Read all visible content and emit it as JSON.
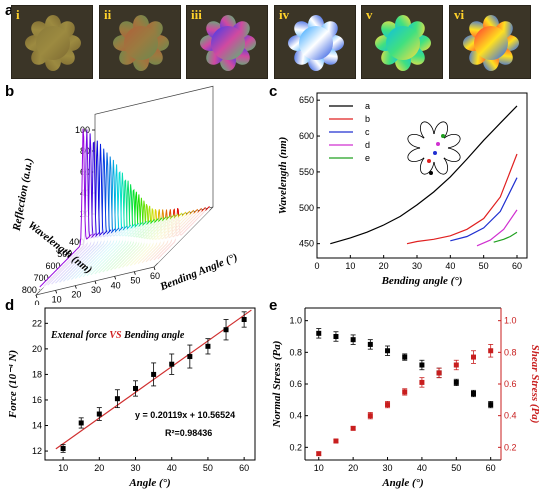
{
  "panels": {
    "a": "a",
    "b": "b",
    "c": "c",
    "d": "d",
    "e": "e"
  },
  "photos": [
    {
      "label": "i",
      "colors": [
        "#8a7a3a",
        "#9c8a40",
        "#7d6a32"
      ]
    },
    {
      "label": "ii",
      "colors": [
        "#b0603a",
        "#9a7b40",
        "#6a8a50"
      ]
    },
    {
      "label": "iii",
      "colors": [
        "#3a3af0",
        "#d04aa0",
        "#50c070"
      ]
    },
    {
      "label": "iv",
      "colors": [
        "#2aa0ff",
        "#ffffff",
        "#2050e0"
      ]
    },
    {
      "label": "v",
      "colors": [
        "#10c0e0",
        "#40e080",
        "#ffe040"
      ]
    },
    {
      "label": "vi",
      "colors": [
        "#ff3030",
        "#ffe020",
        "#2060ff"
      ]
    }
  ],
  "chart_data": [
    {
      "type": "area",
      "panel": "b",
      "zlabel": "Reflection (a.u.)",
      "xlabel": "Wavelength (nm)",
      "ylabel": "Bending Angle (°)",
      "z_ticks": [
        "20",
        "40",
        "60",
        "80",
        "100"
      ],
      "wavelength_ticks": [
        "400",
        "500",
        "600",
        "700",
        "800"
      ],
      "angle_ticks": [
        "0",
        "10",
        "20",
        "30",
        "40",
        "50",
        "60"
      ],
      "series_peaks": [
        {
          "angle": 0,
          "peak_nm": 450,
          "height": 112
        },
        {
          "angle": 2,
          "peak_nm": 453,
          "height": 108
        },
        {
          "angle": 4,
          "peak_nm": 457,
          "height": 104
        },
        {
          "angle": 6,
          "peak_nm": 461,
          "height": 100
        },
        {
          "angle": 8,
          "peak_nm": 465,
          "height": 96
        },
        {
          "angle": 10,
          "peak_nm": 470,
          "height": 92
        },
        {
          "angle": 12,
          "peak_nm": 475,
          "height": 88
        },
        {
          "angle": 14,
          "peak_nm": 481,
          "height": 84
        },
        {
          "angle": 16,
          "peak_nm": 487,
          "height": 80
        },
        {
          "angle": 18,
          "peak_nm": 494,
          "height": 76
        },
        {
          "angle": 20,
          "peak_nm": 501,
          "height": 72
        },
        {
          "angle": 22,
          "peak_nm": 509,
          "height": 68
        },
        {
          "angle": 24,
          "peak_nm": 518,
          "height": 64
        },
        {
          "angle": 26,
          "peak_nm": 527,
          "height": 60
        },
        {
          "angle": 28,
          "peak_nm": 537,
          "height": 57
        },
        {
          "angle": 30,
          "peak_nm": 547,
          "height": 54
        },
        {
          "angle": 32,
          "peak_nm": 557,
          "height": 51
        },
        {
          "angle": 34,
          "peak_nm": 568,
          "height": 48
        },
        {
          "angle": 36,
          "peak_nm": 579,
          "height": 45
        },
        {
          "angle": 38,
          "peak_nm": 590,
          "height": 42
        },
        {
          "angle": 40,
          "peak_nm": 601,
          "height": 40
        },
        {
          "angle": 42,
          "peak_nm": 612,
          "height": 38
        },
        {
          "angle": 44,
          "peak_nm": 622,
          "height": 36
        },
        {
          "angle": 46,
          "peak_nm": 630,
          "height": 34
        },
        {
          "angle": 48,
          "peak_nm": 636,
          "height": 33
        },
        {
          "angle": 50,
          "peak_nm": 640,
          "height": 32
        },
        {
          "angle": 52,
          "peak_nm": 643,
          "height": 31
        },
        {
          "angle": 54,
          "peak_nm": 645,
          "height": 30
        },
        {
          "angle": 56,
          "peak_nm": 646,
          "height": 30
        },
        {
          "angle": 58,
          "peak_nm": 647,
          "height": 30
        },
        {
          "angle": 60,
          "peak_nm": 648,
          "height": 30
        }
      ]
    },
    {
      "type": "line",
      "panel": "c",
      "xlabel": "Bending angle (°)",
      "ylabel": "Wavelength (nm)",
      "xlim": [
        0,
        63
      ],
      "ylim": [
        430,
        660
      ],
      "x_ticks": [
        0,
        10,
        20,
        30,
        40,
        50,
        60
      ],
      "y_ticks": [
        450,
        500,
        550,
        600,
        650
      ],
      "series": [
        {
          "name": "a",
          "color": "#000000",
          "x": [
            4,
            10,
            15,
            20,
            25,
            30,
            35,
            40,
            45,
            50,
            55,
            60
          ],
          "y": [
            450,
            458,
            466,
            476,
            488,
            504,
            522,
            543,
            568,
            594,
            618,
            642
          ]
        },
        {
          "name": "b",
          "color": "#e02020",
          "x": [
            27,
            30,
            35,
            40,
            45,
            50,
            55,
            60
          ],
          "y": [
            450,
            453,
            456,
            461,
            470,
            485,
            515,
            575
          ]
        },
        {
          "name": "c",
          "color": "#2030d0",
          "x": [
            40,
            45,
            50,
            55,
            60
          ],
          "y": [
            454,
            460,
            472,
            495,
            542
          ]
        },
        {
          "name": "d",
          "color": "#d030d0",
          "x": [
            48,
            52,
            56,
            60
          ],
          "y": [
            447,
            455,
            470,
            497
          ]
        },
        {
          "name": "e",
          "color": "#20a020",
          "x": [
            53,
            56,
            58,
            60
          ],
          "y": [
            452,
            456,
            460,
            466
          ]
        }
      ]
    },
    {
      "type": "scatter",
      "panel": "d",
      "xlabel": "Angle (°)",
      "ylabel": "Force (10⁻⁴ N)",
      "annotation": "Extenal force VS Bending angle",
      "annotation_parts": {
        "a": "Extenal force ",
        "b": "VS",
        "c": " Bending angle"
      },
      "equation": "y = 0.20119x + 10.56524",
      "r2": "R²=0.98436",
      "xlim": [
        5,
        63
      ],
      "ylim": [
        11.3,
        23.2
      ],
      "x_ticks": [
        10,
        20,
        30,
        40,
        50,
        60
      ],
      "y_ticks": [
        12,
        14,
        16,
        18,
        20,
        22
      ],
      "fit": {
        "slope": 0.20119,
        "intercept": 10.56524,
        "color": "#d03030"
      },
      "x": [
        10,
        15,
        20,
        25,
        30,
        35,
        40,
        45,
        50,
        55,
        60
      ],
      "y": [
        12.2,
        14.2,
        14.9,
        16.1,
        16.9,
        18.0,
        18.8,
        19.4,
        20.2,
        21.5,
        22.3
      ],
      "err": [
        0.3,
        0.4,
        0.5,
        0.7,
        0.6,
        0.9,
        0.8,
        0.9,
        0.6,
        0.8,
        0.6
      ]
    },
    {
      "type": "scatter",
      "panel": "e",
      "xlabel": "Angle (°)",
      "ylabel": "Normal Stress (Pa)",
      "ylabel_right": "Shear Stress (Pa)",
      "xlim": [
        6,
        63
      ],
      "ylim": [
        0.12,
        1.08
      ],
      "ylim_right": [
        0.12,
        1.08
      ],
      "x_ticks": [
        10,
        20,
        30,
        40,
        50,
        60
      ],
      "y_ticks": [
        0.2,
        0.4,
        0.6,
        0.8,
        1.0
      ],
      "y_ticks_right": [
        0.2,
        0.4,
        0.6,
        0.8,
        1.0
      ],
      "series": [
        {
          "name": "Normal Stress",
          "color": "#000000",
          "axis": "left",
          "x": [
            10,
            15,
            20,
            25,
            30,
            35,
            40,
            45,
            50,
            55,
            60
          ],
          "y": [
            0.92,
            0.9,
            0.88,
            0.85,
            0.81,
            0.77,
            0.72,
            0.67,
            0.61,
            0.54,
            0.47
          ],
          "err": [
            0.03,
            0.03,
            0.03,
            0.03,
            0.03,
            0.02,
            0.03,
            0.03,
            0.02,
            0.02,
            0.02
          ]
        },
        {
          "name": "Shear Stress",
          "color": "#c81e1e",
          "axis": "right",
          "x": [
            10,
            15,
            20,
            25,
            30,
            35,
            40,
            45,
            50,
            55,
            60
          ],
          "y": [
            0.16,
            0.24,
            0.32,
            0.4,
            0.47,
            0.55,
            0.61,
            0.67,
            0.72,
            0.77,
            0.81
          ],
          "err": [
            0.01,
            0.01,
            0.01,
            0.02,
            0.02,
            0.02,
            0.03,
            0.03,
            0.03,
            0.04,
            0.04
          ]
        }
      ]
    }
  ]
}
